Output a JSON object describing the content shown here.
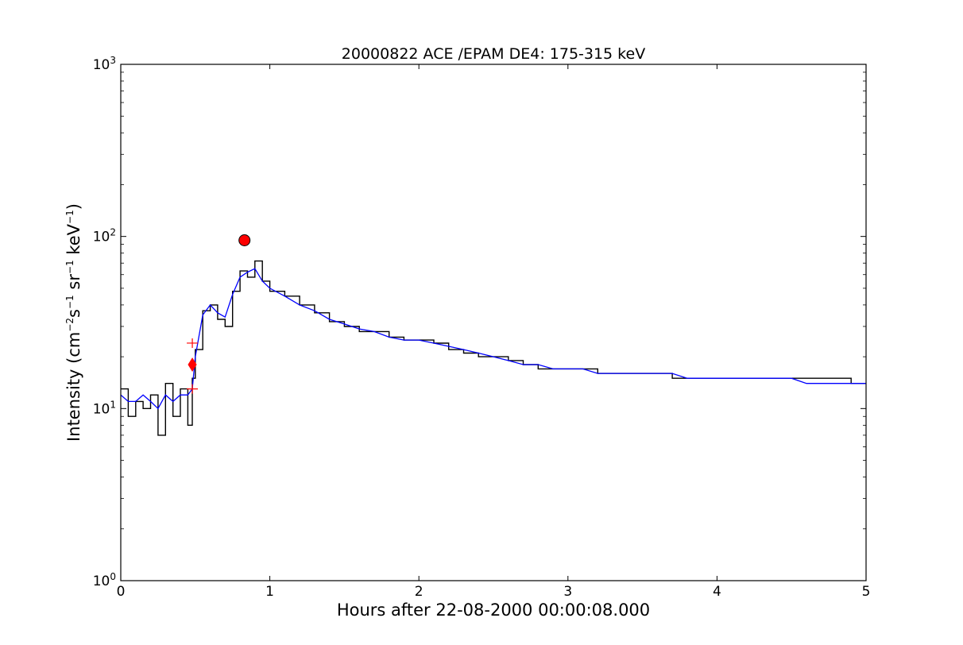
{
  "chart_data": {
    "type": "line",
    "title": "20000822 ACE /EPAM DE4: 175-315 keV",
    "xlabel": "Hours after 22-08-2000 00:00:08.000",
    "ylabel": "Intensity",
    "ylabel_unit_parts": [
      "(cm",
      "−2",
      "s",
      "−1",
      " sr",
      "−1",
      " keV",
      "−1",
      ")"
    ],
    "xlim": [
      0,
      5
    ],
    "ylim": [
      1,
      1000
    ],
    "yscale": "log",
    "grid": false,
    "xticks": [
      0,
      1,
      2,
      3,
      4,
      5
    ],
    "xtick_labels": [
      "0",
      "1",
      "2",
      "3",
      "4",
      "5"
    ],
    "ytick_labels": [
      {
        "value": 1,
        "base": "10",
        "exp": "0"
      },
      {
        "value": 10,
        "base": "10",
        "exp": "1"
      },
      {
        "value": 100,
        "base": "10",
        "exp": "2"
      },
      {
        "value": 1000,
        "base": "10",
        "exp": "3"
      }
    ],
    "colors": {
      "raw": "#000000",
      "smoothed": "#0000ff",
      "markers": "#ff0000"
    },
    "series": [
      {
        "role": "raw-intensity",
        "style": "steps",
        "x": [
          0.0,
          0.05,
          0.1,
          0.15,
          0.2,
          0.25,
          0.3,
          0.35,
          0.4,
          0.45,
          0.48,
          0.5,
          0.55,
          0.6,
          0.65,
          0.7,
          0.75,
          0.8,
          0.85,
          0.9,
          0.95,
          1.0,
          1.1,
          1.2,
          1.3,
          1.4,
          1.5,
          1.6,
          1.7,
          1.8,
          1.9,
          2.0,
          2.1,
          2.2,
          2.3,
          2.4,
          2.5,
          2.6,
          2.7,
          2.8,
          2.9,
          3.0,
          3.1,
          3.2,
          3.3,
          3.4,
          3.5,
          3.6,
          3.7,
          3.8,
          3.9,
          4.0,
          4.1,
          4.2,
          4.3,
          4.4,
          4.5,
          4.6,
          4.7,
          4.8,
          4.9,
          5.0
        ],
        "y": [
          13,
          9,
          11,
          10,
          12,
          7,
          14,
          9,
          13,
          8,
          15,
          22,
          37,
          40,
          33,
          30,
          48,
          63,
          58,
          72,
          55,
          48,
          45,
          40,
          36,
          32,
          30,
          28,
          28,
          26,
          25,
          25,
          24,
          22,
          21,
          20,
          20,
          19,
          18,
          17,
          17,
          17,
          17,
          16,
          16,
          16,
          16,
          16,
          15,
          15,
          15,
          15,
          15,
          15,
          15,
          15,
          15,
          15,
          15,
          15,
          14,
          14
        ]
      },
      {
        "role": "smoothed-intensity",
        "style": "line",
        "x": [
          0.0,
          0.05,
          0.1,
          0.15,
          0.2,
          0.25,
          0.3,
          0.35,
          0.4,
          0.45,
          0.48,
          0.5,
          0.55,
          0.6,
          0.65,
          0.7,
          0.75,
          0.8,
          0.85,
          0.9,
          0.95,
          1.0,
          1.1,
          1.2,
          1.3,
          1.4,
          1.5,
          1.6,
          1.7,
          1.8,
          1.9,
          2.0,
          2.1,
          2.2,
          2.3,
          2.4,
          2.5,
          2.6,
          2.7,
          2.8,
          2.9,
          3.0,
          3.1,
          3.2,
          3.3,
          3.4,
          3.5,
          3.6,
          3.7,
          3.8,
          3.9,
          4.0,
          4.1,
          4.2,
          4.3,
          4.4,
          4.5,
          4.6,
          4.7,
          4.8,
          4.9,
          5.0
        ],
        "y": [
          12,
          11,
          11,
          12,
          11,
          10,
          12,
          11,
          12,
          12,
          13,
          20,
          35,
          40,
          36,
          34,
          46,
          58,
          62,
          65,
          55,
          50,
          45,
          40,
          37,
          33,
          31,
          29,
          28,
          26,
          25,
          25,
          24,
          23,
          22,
          21,
          20,
          19,
          18,
          18,
          17,
          17,
          17,
          16,
          16,
          16,
          16,
          16,
          16,
          15,
          15,
          15,
          15,
          15,
          15,
          15,
          15,
          14,
          14,
          14,
          14,
          14
        ]
      }
    ],
    "markers": [
      {
        "role": "onset",
        "shape": "diamond",
        "x": 0.48,
        "y": 18
      },
      {
        "role": "peak",
        "shape": "circle",
        "x": 0.83,
        "y": 95
      },
      {
        "role": "onset-range-upper",
        "shape": "plus",
        "x": 0.48,
        "y": 24
      },
      {
        "role": "onset-range-lower",
        "shape": "plus",
        "x": 0.48,
        "y": 13
      }
    ]
  }
}
